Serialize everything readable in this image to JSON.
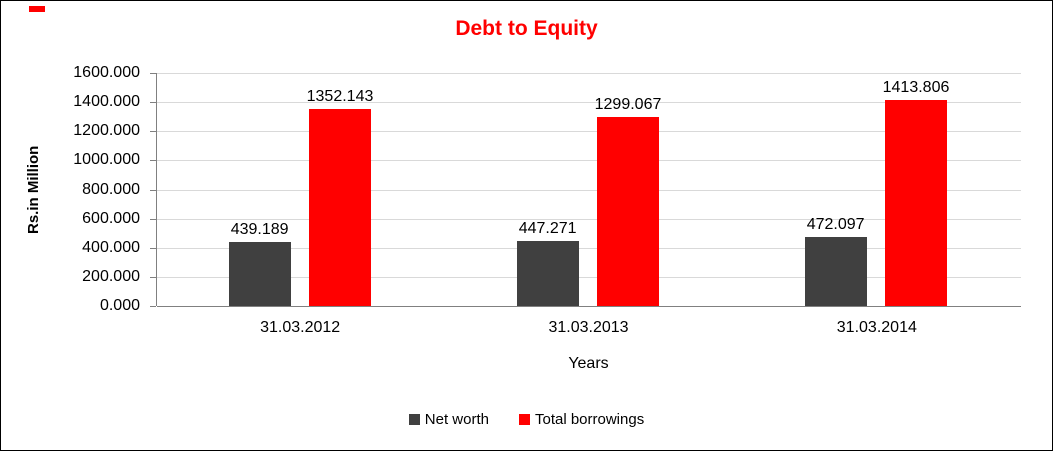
{
  "chart_data": {
    "type": "bar",
    "title": "Debt to Equity",
    "title_color": "#FF0000",
    "categories": [
      "31.03.2012",
      "31.03.2013",
      "31.03.2014"
    ],
    "series": [
      {
        "name": "Net worth",
        "color": "#404040",
        "values": [
          439.189,
          447.271,
          472.097
        ]
      },
      {
        "name": "Total borrowings",
        "color": "#FF0000",
        "values": [
          1352.143,
          1299.067,
          1413.806
        ]
      }
    ],
    "data_labels": {
      "net_worth": [
        "439.189",
        "447.271",
        "472.097"
      ],
      "total_borrowings": [
        "1352.143",
        "1299.067",
        "1413.806"
      ]
    },
    "xlabel": "Years",
    "ylabel": "Rs.in Million",
    "ylim": [
      0,
      1600
    ],
    "ytick_step": 200,
    "ytick_labels": [
      "1600.000",
      "1400.000",
      "1200.000",
      "1000.000",
      "800.000",
      "600.000",
      "400.000",
      "200.000",
      "0.000"
    ],
    "grid": true,
    "legend_position": "bottom"
  }
}
